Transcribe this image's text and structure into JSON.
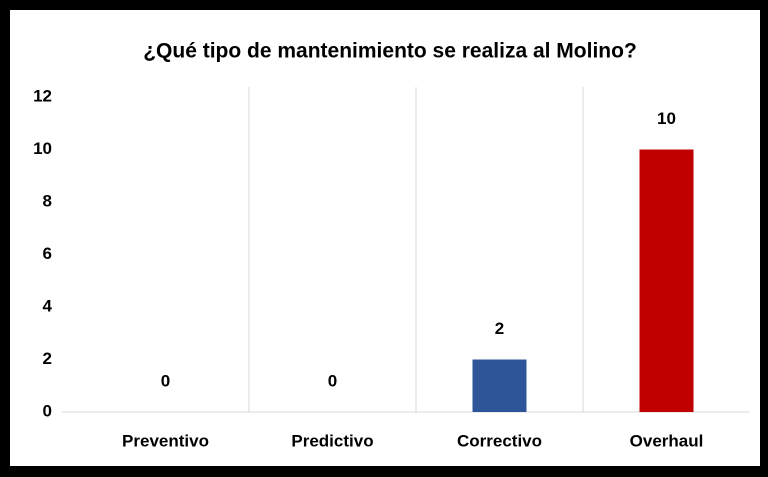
{
  "chart_data": {
    "type": "bar",
    "title": "¿Qué tipo de mantenimiento se realiza al Molino?",
    "categories": [
      "Preventivo",
      "Predictivo",
      "Correctivo",
      "Overhaul"
    ],
    "values": [
      0,
      0,
      2,
      10
    ],
    "colors": [
      "#2e5597",
      "#2e5597",
      "#2e5597",
      "#c00000"
    ],
    "ylim": [
      0,
      12
    ],
    "yticks": [
      0,
      2,
      4,
      6,
      8,
      10,
      12
    ]
  }
}
